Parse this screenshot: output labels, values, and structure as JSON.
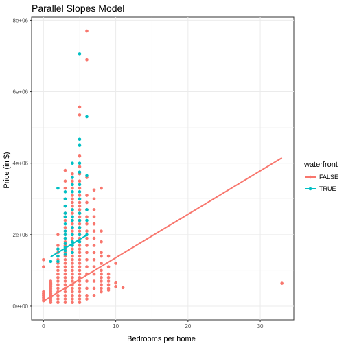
{
  "chart_data": {
    "type": "scatter",
    "title": "Parallel Slopes Model",
    "xlabel": "Bedrooms per home",
    "ylabel": "Price (in $)",
    "xlim": [
      -1.65,
      34.65
    ],
    "ylim": [
      -385000,
      8085000
    ],
    "x_ticks": [
      {
        "value": 0,
        "label": "0"
      },
      {
        "value": 10,
        "label": "10"
      },
      {
        "value": 20,
        "label": "20"
      },
      {
        "value": 30,
        "label": "30"
      }
    ],
    "y_ticks": [
      {
        "value": 0,
        "label": "0e+00"
      },
      {
        "value": 2000000,
        "label": "2e+06"
      },
      {
        "value": 4000000,
        "label": "4e+06"
      },
      {
        "value": 6000000,
        "label": "6e+06"
      },
      {
        "value": 8000000,
        "label": "8e+06"
      }
    ],
    "grid": true,
    "legend": {
      "title": "waterfront",
      "placement": "right",
      "entries": [
        {
          "label": "FALSE",
          "color": "#F8766D"
        },
        {
          "label": "TRUE",
          "color": "#00BFC4"
        }
      ]
    },
    "series": [
      {
        "name": "FALSE",
        "color": "#F8766D",
        "points": [
          [
            0,
            1300000
          ],
          [
            0,
            1100000
          ],
          [
            0,
            400000
          ],
          [
            0,
            350000
          ],
          [
            0,
            300000
          ],
          [
            0,
            250000
          ],
          [
            0,
            200000
          ],
          [
            0,
            150000
          ],
          [
            1,
            700000
          ],
          [
            1,
            650000
          ],
          [
            1,
            600000
          ],
          [
            1,
            550000
          ],
          [
            1,
            500000
          ],
          [
            1,
            450000
          ],
          [
            1,
            400000
          ],
          [
            1,
            350000
          ],
          [
            1,
            300000
          ],
          [
            1,
            250000
          ],
          [
            1,
            200000
          ],
          [
            1,
            150000
          ],
          [
            1,
            100000
          ],
          [
            2,
            2000000
          ],
          [
            2,
            1700000
          ],
          [
            2,
            1600000
          ],
          [
            2,
            1500000
          ],
          [
            2,
            1400000
          ],
          [
            2,
            1300000
          ],
          [
            2,
            1200000
          ],
          [
            2,
            1100000
          ],
          [
            2,
            1000000
          ],
          [
            2,
            900000
          ],
          [
            2,
            800000
          ],
          [
            2,
            700000
          ],
          [
            2,
            600000
          ],
          [
            2,
            500000
          ],
          [
            2,
            400000
          ],
          [
            2,
            300000
          ],
          [
            2,
            200000
          ],
          [
            2,
            100000
          ],
          [
            3,
            3800000
          ],
          [
            3,
            3500000
          ],
          [
            3,
            3300000
          ],
          [
            3,
            3000000
          ],
          [
            3,
            2800000
          ],
          [
            3,
            2600000
          ],
          [
            3,
            2500000
          ],
          [
            3,
            2400000
          ],
          [
            3,
            2200000
          ],
          [
            3,
            2100000
          ],
          [
            3,
            2000000
          ],
          [
            3,
            1900000
          ],
          [
            3,
            1800000
          ],
          [
            3,
            1700000
          ],
          [
            3,
            1600000
          ],
          [
            3,
            1500000
          ],
          [
            3,
            1400000
          ],
          [
            3,
            1300000
          ],
          [
            3,
            1200000
          ],
          [
            3,
            1100000
          ],
          [
            3,
            1000000
          ],
          [
            3,
            900000
          ],
          [
            3,
            800000
          ],
          [
            3,
            700000
          ],
          [
            3,
            600000
          ],
          [
            3,
            500000
          ],
          [
            3,
            400000
          ],
          [
            3,
            300000
          ],
          [
            3,
            200000
          ],
          [
            3,
            100000
          ],
          [
            4,
            3700000
          ],
          [
            4,
            3500000
          ],
          [
            4,
            3300000
          ],
          [
            4,
            3100000
          ],
          [
            4,
            3000000
          ],
          [
            4,
            2900000
          ],
          [
            4,
            2800000
          ],
          [
            4,
            2700000
          ],
          [
            4,
            2600000
          ],
          [
            4,
            2500000
          ],
          [
            4,
            2400000
          ],
          [
            4,
            2300000
          ],
          [
            4,
            2200000
          ],
          [
            4,
            2100000
          ],
          [
            4,
            2000000
          ],
          [
            4,
            1900000
          ],
          [
            4,
            1800000
          ],
          [
            4,
            1700000
          ],
          [
            4,
            1600000
          ],
          [
            4,
            1500000
          ],
          [
            4,
            1400000
          ],
          [
            4,
            1300000
          ],
          [
            4,
            1200000
          ],
          [
            4,
            1100000
          ],
          [
            4,
            1000000
          ],
          [
            4,
            900000
          ],
          [
            4,
            800000
          ],
          [
            4,
            700000
          ],
          [
            4,
            600000
          ],
          [
            4,
            500000
          ],
          [
            4,
            400000
          ],
          [
            4,
            300000
          ],
          [
            4,
            200000
          ],
          [
            4,
            100000
          ],
          [
            5,
            5570000
          ],
          [
            5,
            5350000
          ],
          [
            5,
            4200000
          ],
          [
            5,
            3900000
          ],
          [
            5,
            3700000
          ],
          [
            5,
            3500000
          ],
          [
            5,
            3300000
          ],
          [
            5,
            3100000
          ],
          [
            5,
            3000000
          ],
          [
            5,
            2900000
          ],
          [
            5,
            2800000
          ],
          [
            5,
            2700000
          ],
          [
            5,
            2600000
          ],
          [
            5,
            2500000
          ],
          [
            5,
            2400000
          ],
          [
            5,
            2300000
          ],
          [
            5,
            2200000
          ],
          [
            5,
            2100000
          ],
          [
            5,
            2000000
          ],
          [
            5,
            1900000
          ],
          [
            5,
            1800000
          ],
          [
            5,
            1700000
          ],
          [
            5,
            1600000
          ],
          [
            5,
            1500000
          ],
          [
            5,
            1400000
          ],
          [
            5,
            1300000
          ],
          [
            5,
            1200000
          ],
          [
            5,
            1100000
          ],
          [
            5,
            1000000
          ],
          [
            5,
            900000
          ],
          [
            5,
            800000
          ],
          [
            5,
            700000
          ],
          [
            5,
            600000
          ],
          [
            5,
            500000
          ],
          [
            5,
            400000
          ],
          [
            5,
            300000
          ],
          [
            5,
            200000
          ],
          [
            5,
            100000
          ],
          [
            6,
            7700000
          ],
          [
            6,
            6890000
          ],
          [
            6,
            3600000
          ],
          [
            6,
            3100000
          ],
          [
            6,
            2900000
          ],
          [
            6,
            2700000
          ],
          [
            6,
            2500000
          ],
          [
            6,
            2300000
          ],
          [
            6,
            2100000
          ],
          [
            6,
            1900000
          ],
          [
            6,
            1700000
          ],
          [
            6,
            1500000
          ],
          [
            6,
            1300000
          ],
          [
            6,
            1100000
          ],
          [
            6,
            900000
          ],
          [
            6,
            700000
          ],
          [
            6,
            500000
          ],
          [
            6,
            300000
          ],
          [
            6,
            200000
          ],
          [
            7,
            3250000
          ],
          [
            7,
            3000000
          ],
          [
            7,
            2700000
          ],
          [
            7,
            2500000
          ],
          [
            7,
            2300000
          ],
          [
            7,
            2100000
          ],
          [
            7,
            1900000
          ],
          [
            7,
            1700000
          ],
          [
            7,
            1500000
          ],
          [
            7,
            1300000
          ],
          [
            7,
            1100000
          ],
          [
            7,
            900000
          ],
          [
            7,
            700000
          ],
          [
            7,
            500000
          ],
          [
            7,
            300000
          ],
          [
            8,
            3300000
          ],
          [
            8,
            2100000
          ],
          [
            8,
            1800000
          ],
          [
            8,
            1500000
          ],
          [
            8,
            1400000
          ],
          [
            8,
            1200000
          ],
          [
            8,
            1000000
          ],
          [
            8,
            900000
          ],
          [
            8,
            800000
          ],
          [
            8,
            700000
          ],
          [
            8,
            600000
          ],
          [
            8,
            500000
          ],
          [
            8,
            400000
          ],
          [
            9,
            1400000
          ],
          [
            9,
            1100000
          ],
          [
            9,
            900000
          ],
          [
            9,
            800000
          ],
          [
            9,
            700000
          ],
          [
            9,
            600000
          ],
          [
            9,
            500000
          ],
          [
            9,
            450000
          ],
          [
            10,
            1200000
          ],
          [
            10,
            650000
          ],
          [
            10,
            550000
          ],
          [
            11,
            520000
          ],
          [
            33,
            640000
          ]
        ]
      },
      {
        "name": "TRUE",
        "color": "#00BFC4",
        "points": [
          [
            1,
            1250000
          ],
          [
            2,
            3300000
          ],
          [
            2,
            1600000
          ],
          [
            2,
            1400000
          ],
          [
            2,
            1250000
          ],
          [
            3,
            3200000
          ],
          [
            3,
            3000000
          ],
          [
            3,
            2800000
          ],
          [
            3,
            2600000
          ],
          [
            3,
            2500000
          ],
          [
            3,
            2300000
          ],
          [
            3,
            2100000
          ],
          [
            3,
            2000000
          ],
          [
            3,
            1900000
          ],
          [
            3,
            1750000
          ],
          [
            3,
            1650000
          ],
          [
            3,
            1550000
          ],
          [
            3,
            1450000
          ],
          [
            4,
            4000000
          ],
          [
            4,
            3600000
          ],
          [
            4,
            3400000
          ],
          [
            4,
            3200000
          ],
          [
            4,
            2700000
          ],
          [
            4,
            2500000
          ],
          [
            4,
            2400000
          ],
          [
            4,
            2200000
          ],
          [
            4,
            2000000
          ],
          [
            4,
            1800000
          ],
          [
            4,
            1700000
          ],
          [
            4,
            1500000
          ],
          [
            5,
            7060000
          ],
          [
            5,
            4670000
          ],
          [
            5,
            4500000
          ],
          [
            5,
            4000000
          ],
          [
            5,
            3750000
          ],
          [
            5,
            3400000
          ],
          [
            5,
            3200000
          ],
          [
            5,
            3000000
          ],
          [
            5,
            2600000
          ],
          [
            5,
            2400000
          ],
          [
            5,
            2200000
          ],
          [
            5,
            2000000
          ],
          [
            5,
            1800000
          ],
          [
            6,
            5300000
          ],
          [
            6,
            3650000
          ],
          [
            6,
            2700000
          ],
          [
            6,
            2400000
          ],
          [
            6,
            2000000
          ]
        ]
      }
    ],
    "fit_lines": [
      {
        "name": "FALSE",
        "color": "#F8766D",
        "x": [
          0,
          33
        ],
        "y": [
          140000,
          4150000
        ]
      },
      {
        "name": "TRUE",
        "color": "#00BFC4",
        "x": [
          1,
          6
        ],
        "y": [
          1380000,
          1990000
        ]
      }
    ]
  }
}
